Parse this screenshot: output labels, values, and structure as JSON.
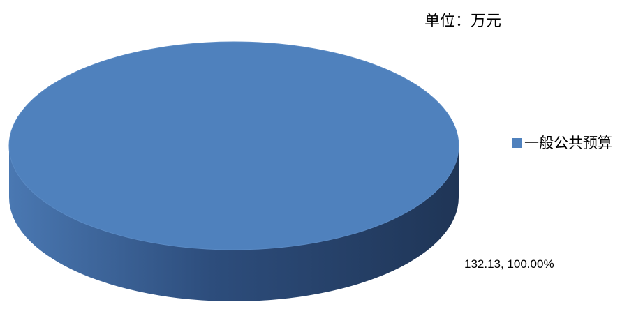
{
  "unit": "单位：万元",
  "chart_data": {
    "type": "pie",
    "categories": [
      "一般公共预算"
    ],
    "values": [
      132.13
    ],
    "percentages": [
      "100.00%"
    ],
    "data_labels": [
      "132.13, 100.00%"
    ],
    "legend_position": "right",
    "style": "3d",
    "colors": {
      "top": "#4f81bd",
      "side_light": "#4a78b2",
      "side_dark": "#1f3556"
    }
  }
}
